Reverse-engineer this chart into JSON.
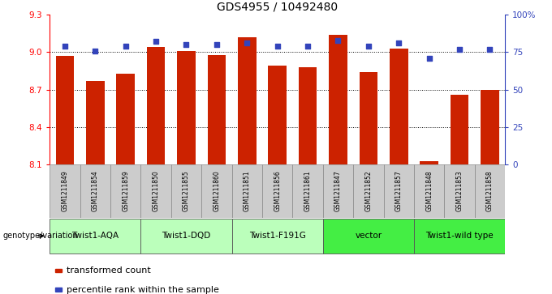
{
  "title": "GDS4955 / 10492480",
  "samples": [
    "GSM1211849",
    "GSM1211854",
    "GSM1211859",
    "GSM1211850",
    "GSM1211855",
    "GSM1211860",
    "GSM1211851",
    "GSM1211856",
    "GSM1211861",
    "GSM1211847",
    "GSM1211852",
    "GSM1211857",
    "GSM1211848",
    "GSM1211853",
    "GSM1211858"
  ],
  "bar_values": [
    8.97,
    8.77,
    8.83,
    9.04,
    9.01,
    8.98,
    9.12,
    8.89,
    8.88,
    9.14,
    8.84,
    9.03,
    8.13,
    8.66,
    8.7
  ],
  "dot_values": [
    79,
    76,
    79,
    82,
    80,
    80,
    81,
    79,
    79,
    83,
    79,
    81,
    71,
    77,
    77
  ],
  "ylim_left": [
    8.1,
    9.3
  ],
  "ylim_right": [
    0,
    100
  ],
  "yticks_left": [
    8.1,
    8.4,
    8.7,
    9.0,
    9.3
  ],
  "yticks_right": [
    0,
    25,
    50,
    75,
    100
  ],
  "ytick_labels_right": [
    "0",
    "25",
    "50",
    "75",
    "100%"
  ],
  "hlines": [
    9.0,
    8.7,
    8.4
  ],
  "bar_color": "#cc2200",
  "dot_color": "#3344bb",
  "bar_width": 0.6,
  "groups": [
    {
      "label": "Twist1-AQA",
      "start": 0,
      "end": 2,
      "color": "#bbffbb"
    },
    {
      "label": "Twist1-DQD",
      "start": 3,
      "end": 5,
      "color": "#bbffbb"
    },
    {
      "label": "Twist1-F191G",
      "start": 6,
      "end": 8,
      "color": "#bbffbb"
    },
    {
      "label": "vector",
      "start": 9,
      "end": 11,
      "color": "#44ee44"
    },
    {
      "label": "Twist1-wild type",
      "start": 12,
      "end": 14,
      "color": "#44ee44"
    }
  ],
  "genotype_label": "genotype/variation",
  "legend_items": [
    {
      "color": "#cc2200",
      "label": "transformed count"
    },
    {
      "color": "#3344bb",
      "label": "percentile rank within the sample"
    }
  ],
  "sample_box_color": "#cccccc",
  "title_fontsize": 10,
  "tick_fontsize": 7.5,
  "sample_fontsize": 5.5,
  "group_fontsize": 7.5,
  "legend_fontsize": 8
}
